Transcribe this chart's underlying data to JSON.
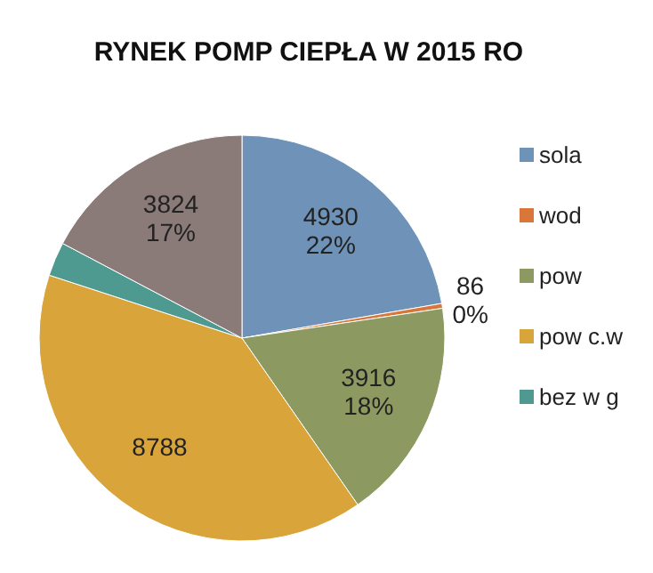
{
  "chart_data": {
    "type": "pie",
    "title": "RYNEK POMP CIEPŁA W 2015 RO",
    "categories": [
      "sola",
      "wod",
      "pow",
      "pow c.w",
      "bez w g",
      null
    ],
    "values": [
      4930,
      86,
      3916,
      8788,
      600,
      3824
    ],
    "colors": [
      "#6f93b8",
      "#d9763a",
      "#8c9a62",
      "#d9a43a",
      "#4e9a90",
      "#8a7a78"
    ],
    "value_labels": [
      "4930 22%",
      "86 0%",
      "3916 18%",
      "8788",
      null,
      "3824 17%"
    ],
    "legend": "right"
  }
}
